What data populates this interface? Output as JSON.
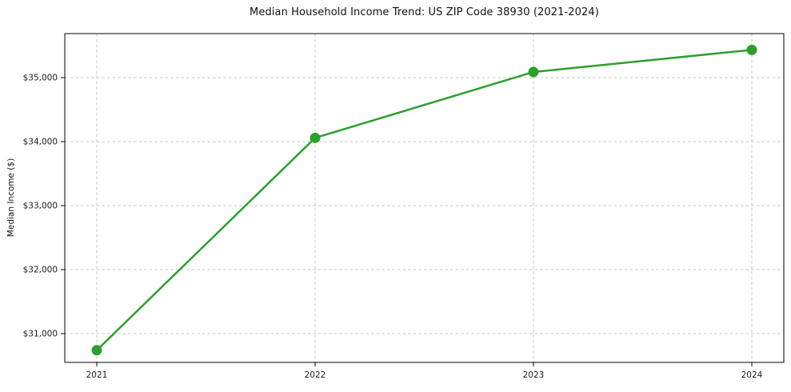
{
  "figure": {
    "background": "#ffffff"
  },
  "chart_data": {
    "type": "line",
    "title": "Median Household Income Trend: US ZIP Code 38930 (2021-2024)",
    "xlabel": "",
    "ylabel": "Median Income ($)",
    "categories": [
      "2021",
      "2022",
      "2023",
      "2024"
    ],
    "series": [
      {
        "name": "Median Household Income",
        "values": [
          30740,
          34060,
          35090,
          35435
        ]
      }
    ],
    "ylim": [
      30550,
      35690
    ],
    "yticks": [
      31000,
      32000,
      33000,
      34000,
      35000
    ],
    "ytick_labels": [
      "$31,000",
      "$32,000",
      "$33,000",
      "$34,000",
      "$35,000"
    ],
    "grid": true,
    "grid_style": "dashed",
    "legend": "none",
    "line_color": "#2ca02c",
    "marker": "circle",
    "marker_size": 6.5,
    "line_width": 2.5,
    "grid_color": "#c9c9c9",
    "axis_color": "#000000",
    "text_color": "#1a1a1a"
  }
}
